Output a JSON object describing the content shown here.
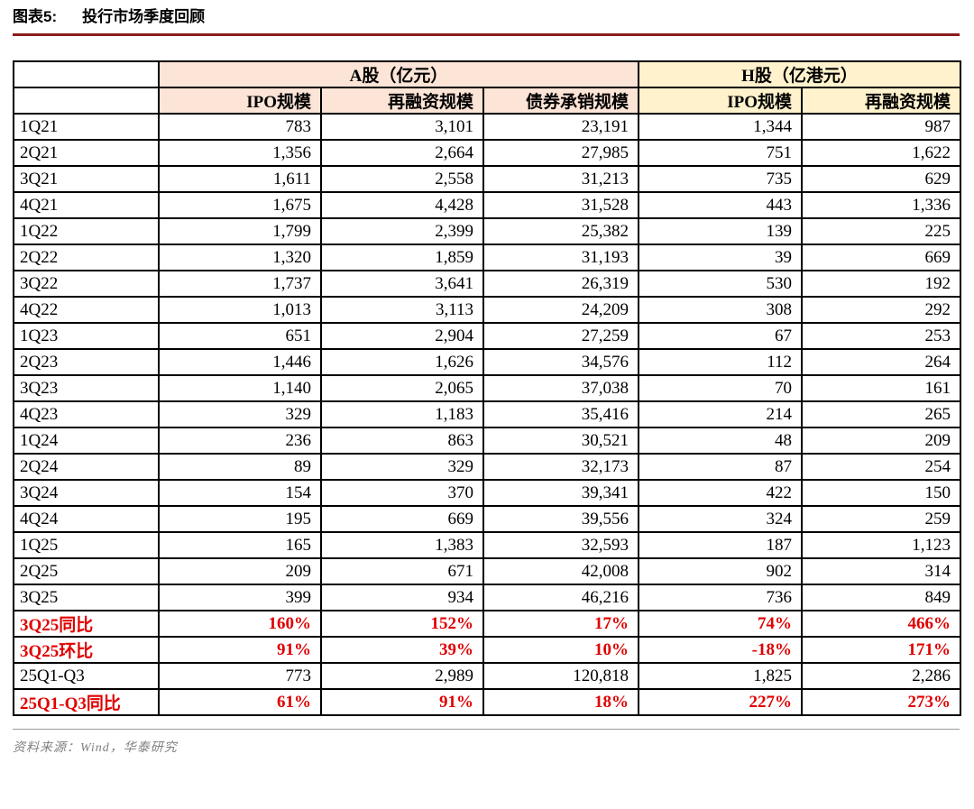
{
  "header": {
    "label": "图表5:",
    "title": "投行市场季度回顾"
  },
  "footer": {
    "source": "资料来源：Wind，华泰研究"
  },
  "colors": {
    "a_share_header_bg": "#fce4d6",
    "h_share_header_bg": "#fff2cc",
    "highlight_red": "#e00000",
    "title_rule": "#8a1c1c",
    "border": "#000000",
    "source_gray": "#808080"
  },
  "chart_data": {
    "type": "table",
    "title": "投行市场季度回顾",
    "group_headers": [
      {
        "label": "A股（亿元）",
        "colspan": 3
      },
      {
        "label": "H股（亿港元）",
        "colspan": 2
      }
    ],
    "columns": [
      "IPO规模",
      "再融资规模",
      "债券承销规模",
      "IPO规模",
      "再融资规模"
    ],
    "rows": [
      {
        "label": "1Q21",
        "values": [
          "783",
          "3,101",
          "23,191",
          "1,344",
          "987"
        ],
        "red": false
      },
      {
        "label": "2Q21",
        "values": [
          "1,356",
          "2,664",
          "27,985",
          "751",
          "1,622"
        ],
        "red": false
      },
      {
        "label": "3Q21",
        "values": [
          "1,611",
          "2,558",
          "31,213",
          "735",
          "629"
        ],
        "red": false
      },
      {
        "label": "4Q21",
        "values": [
          "1,675",
          "4,428",
          "31,528",
          "443",
          "1,336"
        ],
        "red": false
      },
      {
        "label": "1Q22",
        "values": [
          "1,799",
          "2,399",
          "25,382",
          "139",
          "225"
        ],
        "red": false
      },
      {
        "label": "2Q22",
        "values": [
          "1,320",
          "1,859",
          "31,193",
          "39",
          "669"
        ],
        "red": false
      },
      {
        "label": "3Q22",
        "values": [
          "1,737",
          "3,641",
          "26,319",
          "530",
          "192"
        ],
        "red": false
      },
      {
        "label": "4Q22",
        "values": [
          "1,013",
          "3,113",
          "24,209",
          "308",
          "292"
        ],
        "red": false
      },
      {
        "label": "1Q23",
        "values": [
          "651",
          "2,904",
          "27,259",
          "67",
          "253"
        ],
        "red": false
      },
      {
        "label": "2Q23",
        "values": [
          "1,446",
          "1,626",
          "34,576",
          "112",
          "264"
        ],
        "red": false
      },
      {
        "label": "3Q23",
        "values": [
          "1,140",
          "2,065",
          "37,038",
          "70",
          "161"
        ],
        "red": false
      },
      {
        "label": "4Q23",
        "values": [
          "329",
          "1,183",
          "35,416",
          "214",
          "265"
        ],
        "red": false
      },
      {
        "label": "1Q24",
        "values": [
          "236",
          "863",
          "30,521",
          "48",
          "209"
        ],
        "red": false
      },
      {
        "label": "2Q24",
        "values": [
          "89",
          "329",
          "32,173",
          "87",
          "254"
        ],
        "red": false
      },
      {
        "label": "3Q24",
        "values": [
          "154",
          "370",
          "39,341",
          "422",
          "150"
        ],
        "red": false
      },
      {
        "label": "4Q24",
        "values": [
          "195",
          "669",
          "39,556",
          "324",
          "259"
        ],
        "red": false
      },
      {
        "label": "1Q25",
        "values": [
          "165",
          "1,383",
          "32,593",
          "187",
          "1,123"
        ],
        "red": false
      },
      {
        "label": "2Q25",
        "values": [
          "209",
          "671",
          "42,008",
          "902",
          "314"
        ],
        "red": false
      },
      {
        "label": "3Q25",
        "values": [
          "399",
          "934",
          "46,216",
          "736",
          "849"
        ],
        "red": false
      },
      {
        "label": "3Q25同比",
        "values": [
          "160%",
          "152%",
          "17%",
          "74%",
          "466%"
        ],
        "red": true
      },
      {
        "label": "3Q25环比",
        "values": [
          "91%",
          "39%",
          "10%",
          "-18%",
          "171%"
        ],
        "red": true
      },
      {
        "label": "25Q1-Q3",
        "values": [
          "773",
          "2,989",
          "120,818",
          "1,825",
          "2,286"
        ],
        "red": false
      },
      {
        "label": "25Q1-Q3同比",
        "values": [
          "61%",
          "91%",
          "18%",
          "227%",
          "273%"
        ],
        "red": true
      }
    ]
  }
}
